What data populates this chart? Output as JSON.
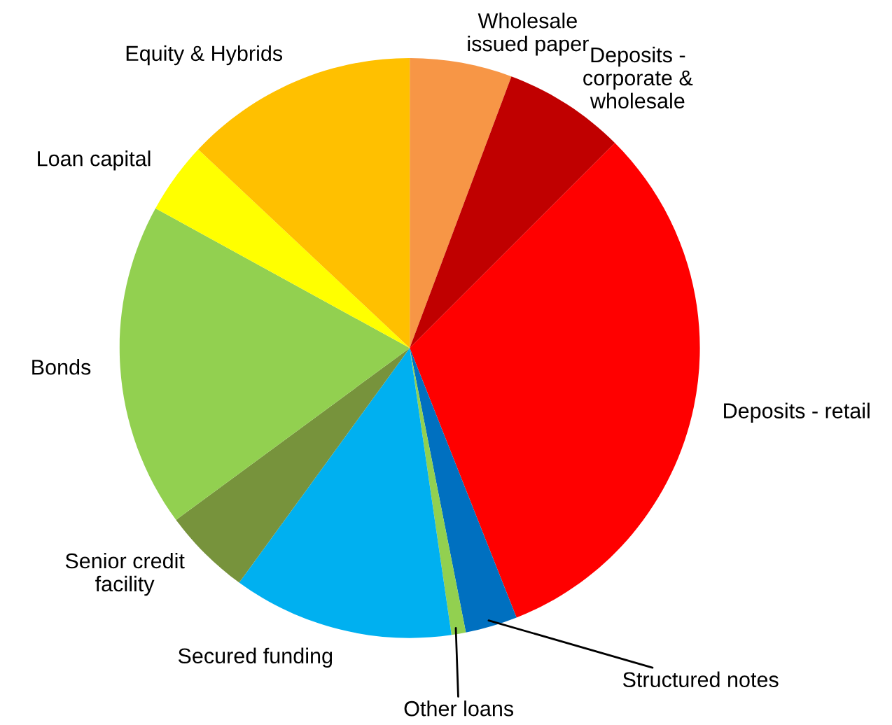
{
  "chart_data": {
    "type": "pie",
    "categories": [
      "Wholesale\nissued paper",
      "Deposits -\ncorporate &\nwholesale",
      "Deposits - retail",
      "Structured notes",
      "Other loans",
      "Secured funding",
      "Senior credit\nfacility",
      "Bonds",
      "Loan capital",
      "Equity & Hybrids"
    ],
    "values": [
      5.7,
      6.8,
      31.5,
      2.9,
      0.8,
      12.3,
      4.9,
      18.1,
      4.0,
      13.0
    ],
    "colors": [
      "#f79646",
      "#c00000",
      "#ff0000",
      "#0070c0",
      "#92d050",
      "#00b0f0",
      "#77933c",
      "#92d050",
      "#ffff00",
      "#ffc000"
    ],
    "legend": false
  }
}
